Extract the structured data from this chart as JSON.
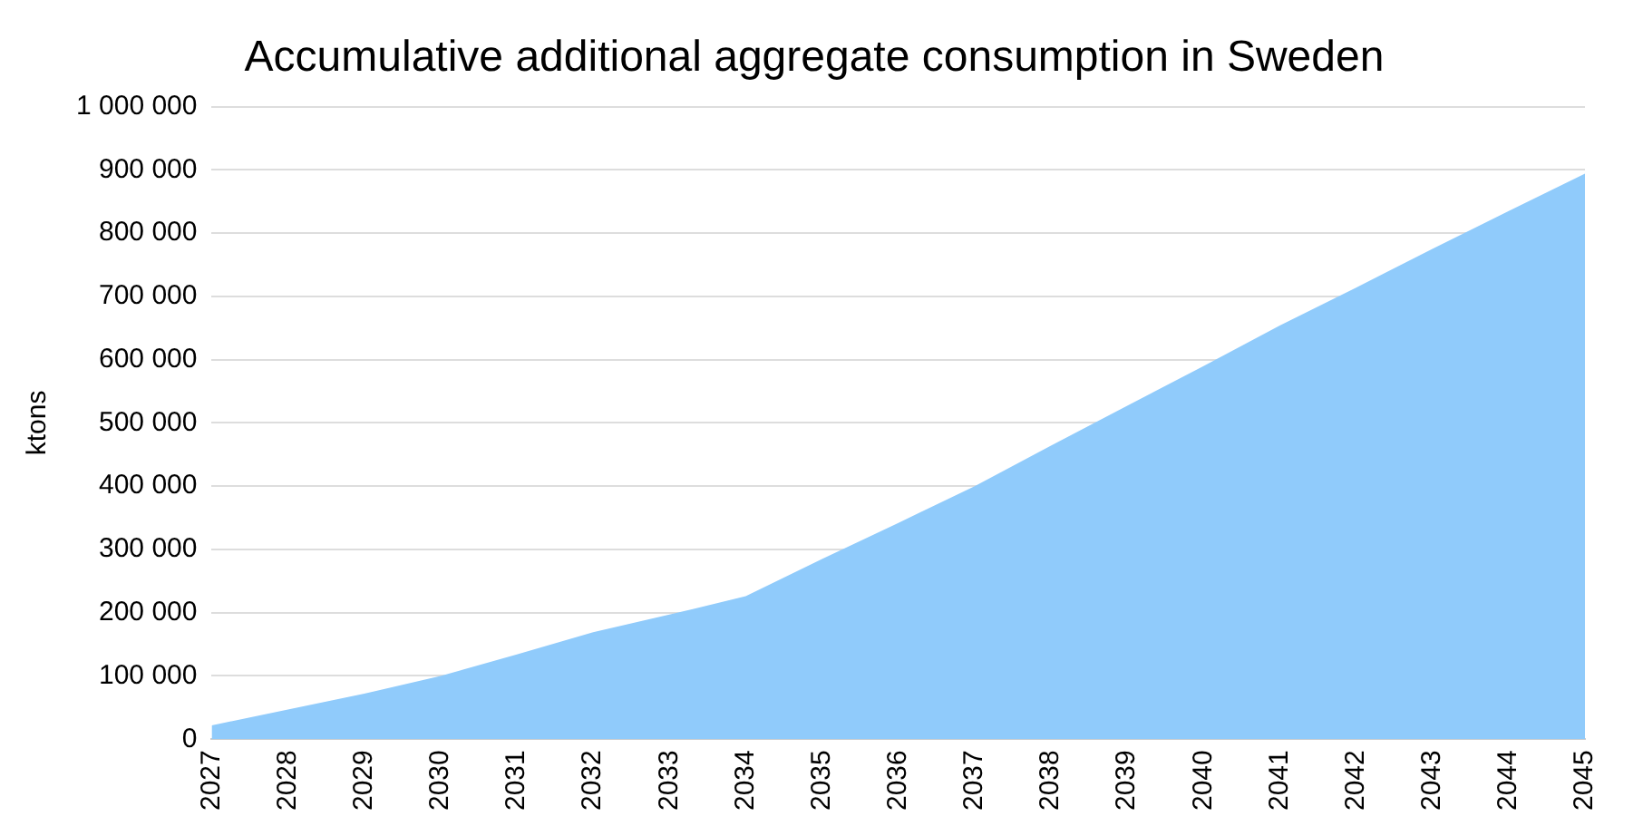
{
  "chart_data": {
    "type": "area",
    "title": "Accumulative additional aggregate consumption in Sweden",
    "ylabel": "ktons",
    "categories": [
      "2027",
      "2028",
      "2029",
      "2030",
      "2031",
      "2032",
      "2033",
      "2034",
      "2035",
      "2036",
      "2037",
      "2038",
      "2039",
      "2040",
      "2041",
      "2042",
      "2043",
      "2044",
      "2045"
    ],
    "series": [
      {
        "color": "#90cbfb",
        "values": [
          22000,
          47000,
          72000,
          100000,
          134000,
          169000,
          197000,
          226000,
          285000,
          342000,
          400000,
          464000,
          527000,
          590000,
          654000,
          714000,
          775000,
          835000,
          894000
        ]
      }
    ],
    "ylim": [
      0,
      1000000
    ],
    "yticks": [
      {
        "value": 0,
        "label": "0"
      },
      {
        "value": 100000,
        "label": "100 000"
      },
      {
        "value": 200000,
        "label": "200 000"
      },
      {
        "value": 300000,
        "label": "300 000"
      },
      {
        "value": 400000,
        "label": "400 000"
      },
      {
        "value": 500000,
        "label": "500 000"
      },
      {
        "value": 600000,
        "label": "600 000"
      },
      {
        "value": 700000,
        "label": "700 000"
      },
      {
        "value": 800000,
        "label": "800 000"
      },
      {
        "value": 900000,
        "label": "900 000"
      },
      {
        "value": 1000000,
        "label": "1 000 000"
      }
    ],
    "grid": "y",
    "legend": false
  }
}
